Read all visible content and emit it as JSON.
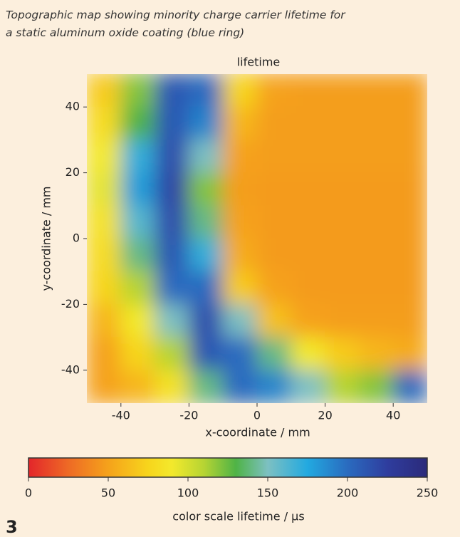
{
  "chart_data": {
    "type": "heatmap",
    "caption": [
      "Topographic map showing minority charge carrier lifetime for",
      "a static aluminum oxide coating (blue ring)"
    ],
    "title": "lifetime",
    "x_label": "x-coordinate / mm",
    "y_label": "y-coordinate / mm",
    "figure_number": "3",
    "x": [
      -45,
      -35,
      -25,
      -15,
      -5,
      5,
      15,
      25,
      35,
      45
    ],
    "y": [
      45,
      35,
      25,
      15,
      5,
      -5,
      -15,
      -25,
      -35,
      -45
    ],
    "values": [
      [
        70,
        120,
        210,
        200,
        75,
        50,
        48,
        48,
        48,
        48
      ],
      [
        80,
        130,
        210,
        190,
        60,
        48,
        48,
        48,
        48,
        48
      ],
      [
        90,
        170,
        215,
        150,
        50,
        48,
        48,
        48,
        48,
        48
      ],
      [
        95,
        180,
        220,
        120,
        48,
        47,
        47,
        47,
        47,
        47
      ],
      [
        85,
        160,
        215,
        140,
        50,
        47,
        47,
        47,
        47,
        47
      ],
      [
        80,
        140,
        210,
        170,
        55,
        47,
        47,
        47,
        47,
        47
      ],
      [
        75,
        110,
        200,
        200,
        70,
        50,
        47,
        47,
        47,
        47
      ],
      [
        60,
        90,
        150,
        215,
        150,
        65,
        50,
        48,
        48,
        48
      ],
      [
        50,
        75,
        110,
        210,
        200,
        140,
        90,
        70,
        60,
        55
      ],
      [
        50,
        60,
        85,
        140,
        200,
        190,
        150,
        110,
        120,
        200
      ]
    ],
    "xlim": [
      -50,
      50
    ],
    "ylim": [
      -50,
      50
    ],
    "xticks": [
      -40,
      -20,
      0,
      20,
      40
    ],
    "yticks": [
      -40,
      -20,
      0,
      20,
      40
    ],
    "colorbar": {
      "label": "color scale lifetime / μs",
      "lim": [
        0,
        250
      ],
      "ticks": [
        0,
        50,
        100,
        150,
        200,
        250
      ]
    },
    "colorscale": [
      {
        "value": 0,
        "color": "#e3262b"
      },
      {
        "value": 25,
        "color": "#ee6a25"
      },
      {
        "value": 50,
        "color": "#f5a21b"
      },
      {
        "value": 75,
        "color": "#f7d51c"
      },
      {
        "value": 90,
        "color": "#f3e92c"
      },
      {
        "value": 110,
        "color": "#b6d433"
      },
      {
        "value": 130,
        "color": "#4fb346"
      },
      {
        "value": 150,
        "color": "#7dc0c2"
      },
      {
        "value": 175,
        "color": "#22a9e0"
      },
      {
        "value": 200,
        "color": "#2a6bbf"
      },
      {
        "value": 225,
        "color": "#2f3d9e"
      },
      {
        "value": 250,
        "color": "#2b2a7a"
      }
    ]
  }
}
